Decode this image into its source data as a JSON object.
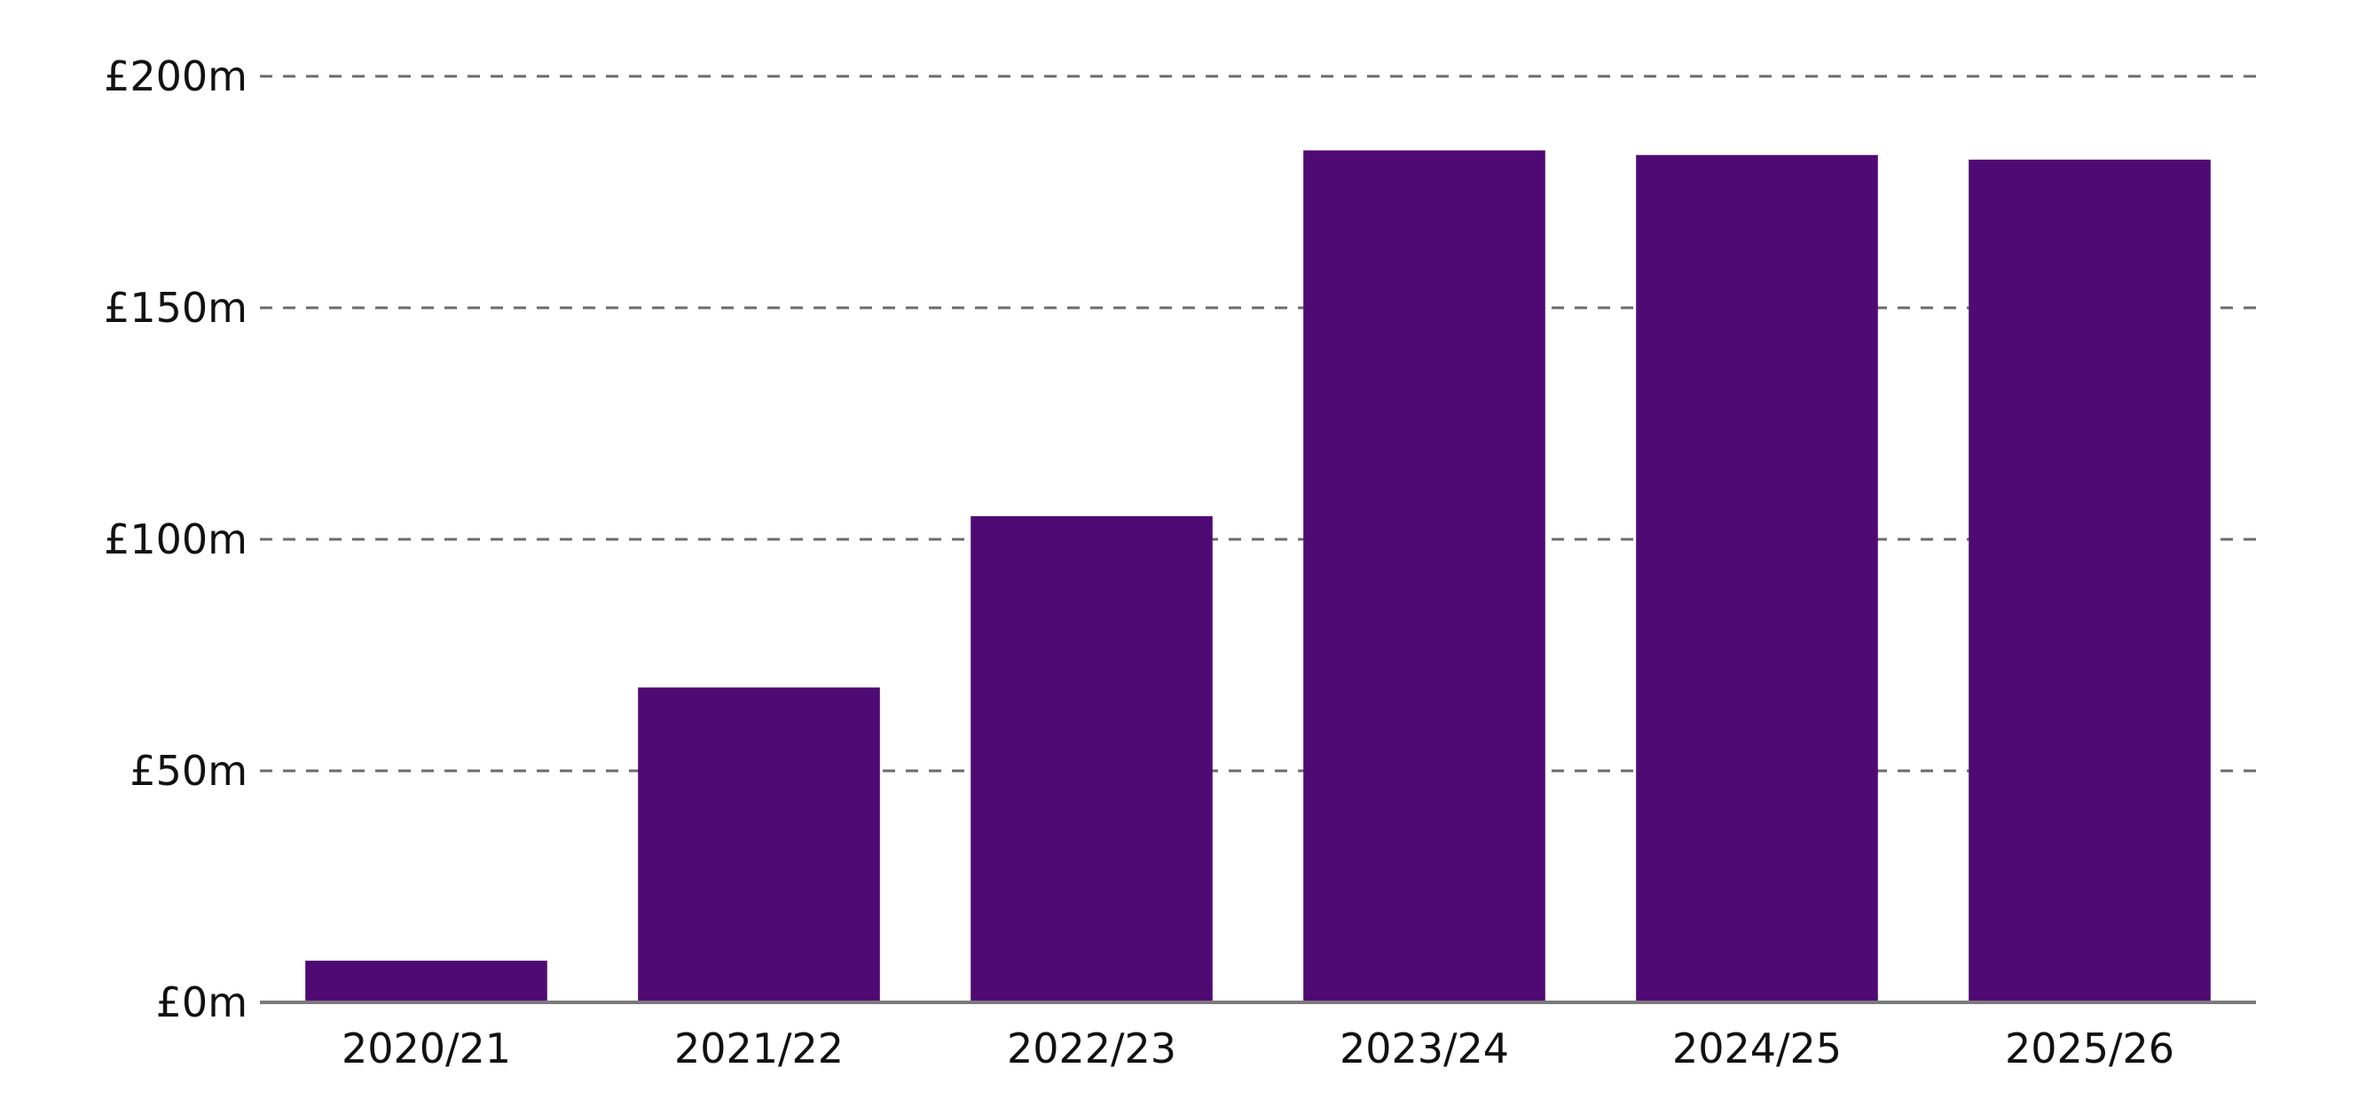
{
  "chart_data": {
    "type": "bar",
    "categories": [
      "2020/21",
      "2021/22",
      "2022/23",
      "2023/24",
      "2024/25",
      "2025/26"
    ],
    "values": [
      9,
      68,
      105,
      184,
      183,
      182
    ],
    "y_ticks": [
      0,
      50,
      100,
      150,
      200
    ],
    "y_tick_labels": [
      "£0m",
      "£50m",
      "£100m",
      "£150m",
      "£200m"
    ],
    "ylim": [
      0,
      200
    ],
    "grid": true,
    "legend": "none",
    "bar_color": "#500a74",
    "title": "",
    "xlabel": "",
    "ylabel": ""
  }
}
